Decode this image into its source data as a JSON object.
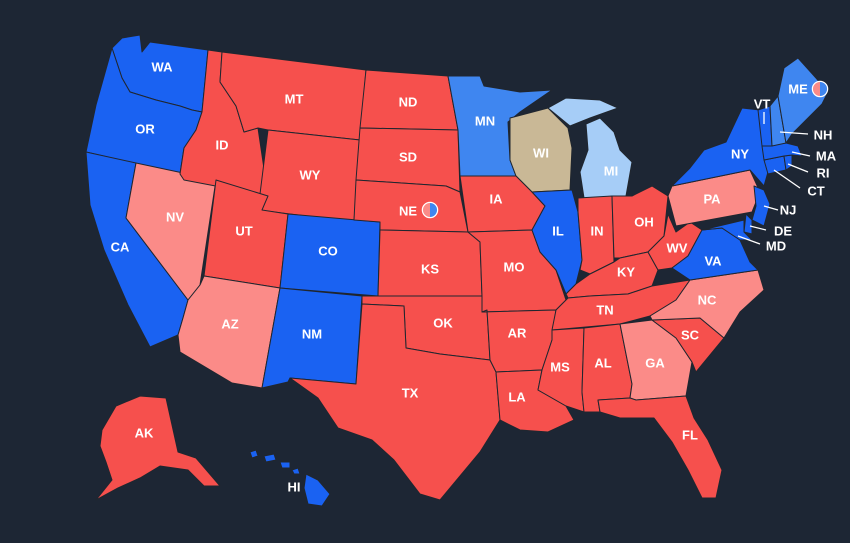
{
  "colors": {
    "background": "#1d2634",
    "solid-d": "#1a62f2",
    "likely-d": "#3f86f0",
    "lean-d": "#a6cdf7",
    "toss-up": "#c9b896",
    "lean-r": "#fb8b88",
    "solid-r": "#f6504d",
    "border": "#20262f"
  },
  "states": [
    {
      "abbr": "WA",
      "rating": "solid-d"
    },
    {
      "abbr": "OR",
      "rating": "solid-d"
    },
    {
      "abbr": "CA",
      "rating": "solid-d"
    },
    {
      "abbr": "NV",
      "rating": "lean-r"
    },
    {
      "abbr": "ID",
      "rating": "solid-r"
    },
    {
      "abbr": "MT",
      "rating": "solid-r"
    },
    {
      "abbr": "WY",
      "rating": "solid-r"
    },
    {
      "abbr": "UT",
      "rating": "solid-r"
    },
    {
      "abbr": "AZ",
      "rating": "lean-r"
    },
    {
      "abbr": "CO",
      "rating": "solid-d"
    },
    {
      "abbr": "NM",
      "rating": "solid-d"
    },
    {
      "abbr": "ND",
      "rating": "solid-r"
    },
    {
      "abbr": "SD",
      "rating": "solid-r"
    },
    {
      "abbr": "NE",
      "rating": "solid-r"
    },
    {
      "abbr": "KS",
      "rating": "solid-r"
    },
    {
      "abbr": "OK",
      "rating": "solid-r"
    },
    {
      "abbr": "TX",
      "rating": "solid-r"
    },
    {
      "abbr": "MN",
      "rating": "likely-d"
    },
    {
      "abbr": "IA",
      "rating": "solid-r"
    },
    {
      "abbr": "MO",
      "rating": "solid-r"
    },
    {
      "abbr": "AR",
      "rating": "solid-r"
    },
    {
      "abbr": "LA",
      "rating": "solid-r"
    },
    {
      "abbr": "WI",
      "rating": "toss-up"
    },
    {
      "abbr": "IL",
      "rating": "solid-d"
    },
    {
      "abbr": "MI",
      "rating": "lean-d"
    },
    {
      "abbr": "IN",
      "rating": "solid-r"
    },
    {
      "abbr": "OH",
      "rating": "solid-r"
    },
    {
      "abbr": "KY",
      "rating": "solid-r"
    },
    {
      "abbr": "TN",
      "rating": "solid-r"
    },
    {
      "abbr": "MS",
      "rating": "solid-r"
    },
    {
      "abbr": "AL",
      "rating": "solid-r"
    },
    {
      "abbr": "GA",
      "rating": "lean-r"
    },
    {
      "abbr": "FL",
      "rating": "solid-r"
    },
    {
      "abbr": "SC",
      "rating": "solid-r"
    },
    {
      "abbr": "NC",
      "rating": "lean-r"
    },
    {
      "abbr": "VA",
      "rating": "solid-d"
    },
    {
      "abbr": "WV",
      "rating": "solid-r"
    },
    {
      "abbr": "PA",
      "rating": "lean-r"
    },
    {
      "abbr": "NY",
      "rating": "solid-d"
    },
    {
      "abbr": "NJ",
      "rating": "solid-d"
    },
    {
      "abbr": "DE",
      "rating": "solid-d"
    },
    {
      "abbr": "MD",
      "rating": "solid-d"
    },
    {
      "abbr": "CT",
      "rating": "solid-d"
    },
    {
      "abbr": "RI",
      "rating": "solid-d"
    },
    {
      "abbr": "MA",
      "rating": "solid-d"
    },
    {
      "abbr": "VT",
      "rating": "solid-d"
    },
    {
      "abbr": "NH",
      "rating": "likely-d"
    },
    {
      "abbr": "ME",
      "rating": "likely-d"
    },
    {
      "abbr": "AK",
      "rating": "solid-r"
    },
    {
      "abbr": "HI",
      "rating": "solid-d"
    }
  ],
  "split_districts": [
    {
      "state": "NE",
      "ratings": [
        "lean-r",
        "likely-d"
      ]
    },
    {
      "state": "ME",
      "ratings": [
        "lean-r",
        "likely-d"
      ]
    }
  ]
}
